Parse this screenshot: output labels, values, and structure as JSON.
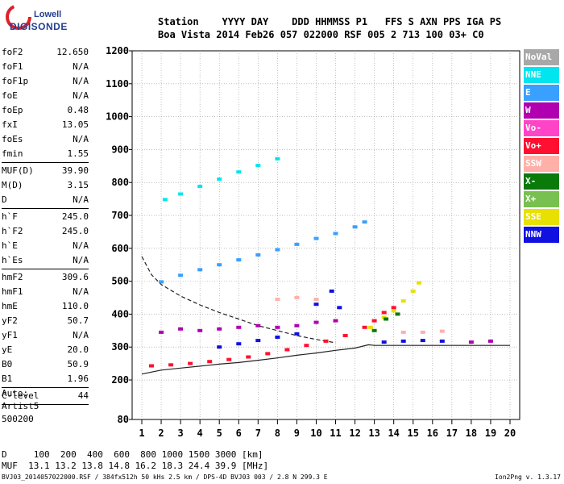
{
  "logo": {
    "line1": "Lowell",
    "line2": "DIGISONDE"
  },
  "header": {
    "line1": "Station    YYYY DAY    DDD HHMMSS P1   FFS S AXN PPS IGA PS",
    "line2": "Boa Vista 2014 Feb26 057 022000 RSF 005 2 713 100 03+ C0"
  },
  "params": {
    "group1": [
      {
        "k": "foF2",
        "v": "12.650"
      },
      {
        "k": "foF1",
        "v": "N/A"
      },
      {
        "k": "foF1p",
        "v": "N/A"
      },
      {
        "k": "foE",
        "v": "N/A"
      },
      {
        "k": "foEp",
        "v": "0.48"
      },
      {
        "k": "fxI",
        "v": "13.05"
      },
      {
        "k": "foEs",
        "v": "N/A"
      },
      {
        "k": "fmin",
        "v": "1.55"
      }
    ],
    "group2": [
      {
        "k": "MUF(D)",
        "v": "39.90"
      },
      {
        "k": "M(D)",
        "v": "3.15"
      },
      {
        "k": "D",
        "v": "N/A"
      }
    ],
    "group3": [
      {
        "k": "h`F",
        "v": "245.0"
      },
      {
        "k": "h`F2",
        "v": "245.0"
      },
      {
        "k": "h`E",
        "v": "N/A"
      },
      {
        "k": "h`Es",
        "v": "N/A"
      }
    ],
    "group4": [
      {
        "k": "hmF2",
        "v": "309.6"
      },
      {
        "k": "hmF1",
        "v": "N/A"
      },
      {
        "k": "hmE",
        "v": "110.0"
      },
      {
        "k": "yF2",
        "v": "50.7"
      },
      {
        "k": "yF1",
        "v": "N/A"
      },
      {
        "k": "yE",
        "v": "20.0"
      },
      {
        "k": "B0",
        "v": "50.9"
      },
      {
        "k": "B1",
        "v": "1.96"
      }
    ],
    "group5": [
      {
        "k": "C-level",
        "v": "44"
      }
    ],
    "auto": [
      "Auto:",
      "Artist5",
      "500200"
    ]
  },
  "legend": [
    {
      "label": "NoVal",
      "color": "#a8a8a8"
    },
    {
      "label": "NNE",
      "color": "#00e5ee"
    },
    {
      "label": "E",
      "color": "#3aa0ff"
    },
    {
      "label": "W",
      "color": "#b000b0"
    },
    {
      "label": "Vo-",
      "color": "#ff44c8"
    },
    {
      "label": "Vo+",
      "color": "#ff1030"
    },
    {
      "label": "SSW",
      "color": "#ffb0a8"
    },
    {
      "label": "X-",
      "color": "#0a7a0a"
    },
    {
      "label": "X+",
      "color": "#78c050"
    },
    {
      "label": "SSE",
      "color": "#e8e000"
    },
    {
      "label": "NNW",
      "color": "#1010e0"
    }
  ],
  "chart_data": {
    "type": "scatter",
    "xlabel": "",
    "ylabel": "",
    "xlim": [
      1,
      20
    ],
    "ylim": [
      80,
      1200
    ],
    "x_ticks": [
      1,
      2,
      3,
      4,
      5,
      6,
      7,
      8,
      9,
      10,
      11,
      12,
      13,
      14,
      15,
      16,
      17,
      18,
      19,
      20
    ],
    "y_ticks": [
      80,
      200,
      300,
      400,
      500,
      600,
      700,
      800,
      900,
      1000,
      1100,
      1200
    ],
    "grid": true,
    "series": [
      {
        "color": "#00e5ee",
        "points": [
          [
            2.2,
            748
          ],
          [
            3.0,
            765
          ],
          [
            4.0,
            788
          ],
          [
            5.0,
            810
          ],
          [
            6.0,
            832
          ],
          [
            7.0,
            852
          ],
          [
            8.0,
            872
          ]
        ]
      },
      {
        "color": "#3aa0ff",
        "points": [
          [
            2.0,
            498
          ],
          [
            3.0,
            518
          ],
          [
            4.0,
            535
          ],
          [
            5.0,
            550
          ],
          [
            6.0,
            565
          ],
          [
            7.0,
            580
          ],
          [
            8.0,
            596
          ],
          [
            9.0,
            612
          ],
          [
            10.0,
            630
          ],
          [
            11.0,
            645
          ],
          [
            12.0,
            665
          ],
          [
            12.5,
            680
          ]
        ]
      },
      {
        "color": "#ff1030",
        "points": [
          [
            1.5,
            243
          ],
          [
            2.5,
            246
          ],
          [
            3.5,
            250
          ],
          [
            4.5,
            256
          ],
          [
            5.5,
            262
          ],
          [
            6.5,
            270
          ],
          [
            7.5,
            280
          ],
          [
            8.5,
            292
          ],
          [
            9.5,
            305
          ],
          [
            10.5,
            318
          ],
          [
            11.5,
            335
          ],
          [
            12.5,
            360
          ],
          [
            13.0,
            380
          ],
          [
            13.5,
            405
          ],
          [
            14.0,
            420
          ]
        ]
      },
      {
        "color": "#e8e000",
        "points": [
          [
            12.8,
            360
          ],
          [
            13.5,
            390
          ],
          [
            14.0,
            410
          ],
          [
            14.5,
            440
          ],
          [
            15.0,
            470
          ],
          [
            15.3,
            495
          ]
        ]
      },
      {
        "color": "#b000b0",
        "points": [
          [
            2.0,
            345
          ],
          [
            3.0,
            355
          ],
          [
            4.0,
            350
          ],
          [
            5.0,
            355
          ],
          [
            6.0,
            360
          ],
          [
            7.0,
            365
          ],
          [
            8.0,
            360
          ],
          [
            9.0,
            365
          ],
          [
            10.0,
            375
          ],
          [
            11.0,
            380
          ],
          [
            18.0,
            315
          ],
          [
            19.0,
            318
          ]
        ]
      },
      {
        "color": "#1010e0",
        "points": [
          [
            5.0,
            300
          ],
          [
            6.0,
            310
          ],
          [
            7.0,
            320
          ],
          [
            8.0,
            330
          ],
          [
            9.0,
            340
          ],
          [
            10.0,
            430
          ],
          [
            10.8,
            470
          ],
          [
            11.2,
            420
          ],
          [
            13.5,
            315
          ],
          [
            14.5,
            318
          ],
          [
            15.5,
            320
          ],
          [
            16.5,
            318
          ]
        ]
      },
      {
        "color": "#0a7a0a",
        "points": [
          [
            13.0,
            350
          ],
          [
            13.6,
            385
          ],
          [
            14.2,
            400
          ]
        ]
      },
      {
        "color": "#ffb0a8",
        "points": [
          [
            8.0,
            445
          ],
          [
            9.0,
            450
          ],
          [
            10.0,
            445
          ],
          [
            14.5,
            345
          ],
          [
            15.5,
            345
          ],
          [
            16.5,
            348
          ]
        ]
      }
    ],
    "lines": [
      {
        "style": "solid",
        "color": "#222222",
        "points": [
          [
            1,
            218
          ],
          [
            2,
            230
          ],
          [
            3,
            236
          ],
          [
            4,
            242
          ],
          [
            5,
            248
          ],
          [
            6,
            253
          ],
          [
            7,
            260
          ],
          [
            8,
            267
          ],
          [
            9,
            275
          ],
          [
            10,
            282
          ],
          [
            11,
            290
          ],
          [
            12,
            297
          ],
          [
            12.7,
            307
          ],
          [
            13,
            305
          ],
          [
            16,
            305
          ],
          [
            17,
            305
          ],
          [
            20,
            305
          ]
        ]
      },
      {
        "style": "dashed",
        "color": "#222222",
        "points": [
          [
            1,
            575
          ],
          [
            1.5,
            520
          ],
          [
            2,
            490
          ],
          [
            3,
            455
          ],
          [
            4,
            428
          ],
          [
            5,
            405
          ],
          [
            6,
            385
          ],
          [
            7,
            365
          ],
          [
            8,
            350
          ],
          [
            9,
            335
          ],
          [
            10,
            323
          ],
          [
            11,
            313
          ]
        ]
      }
    ]
  },
  "footer": {
    "line1": "D     100  200  400  600  800 1000 1500 3000 [km]",
    "line2": "MUF  13.1 13.2 13.8 14.8 16.2 18.3 24.4 39.9 [MHz]",
    "file": "BVJ03_2014057022000.RSF / 384fx512h 50 kHs 2.5 km / DPS-4D BVJ03 003 / 2.8 N 299.3 E",
    "version": "Ion2Png v. 1.3.17"
  }
}
